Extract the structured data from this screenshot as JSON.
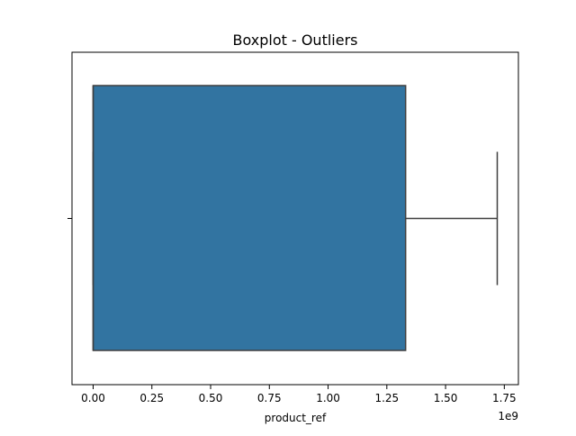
{
  "chart_data": {
    "type": "boxplot",
    "title": "Boxplot - Outliers",
    "xlabel": "product_ref",
    "ylabel": "",
    "x_offset_label": "1e9",
    "x_ticks": [
      0.0,
      0.25,
      0.5,
      0.75,
      1.0,
      1.25,
      1.5,
      1.75
    ],
    "x_tick_labels": [
      "0.00",
      "0.25",
      "0.50",
      "0.75",
      "1.00",
      "1.25",
      "1.50",
      "1.75"
    ],
    "xlim": [
      -0.09,
      1.81
    ],
    "y_ticks": [
      ""
    ],
    "grid": false,
    "series": [
      {
        "min": 0.0,
        "q1": 0.0,
        "median": 0.0,
        "q3": 1.33,
        "max": 1.72,
        "color": "#3274a1",
        "edge_color": "#3f3f3f"
      }
    ]
  }
}
